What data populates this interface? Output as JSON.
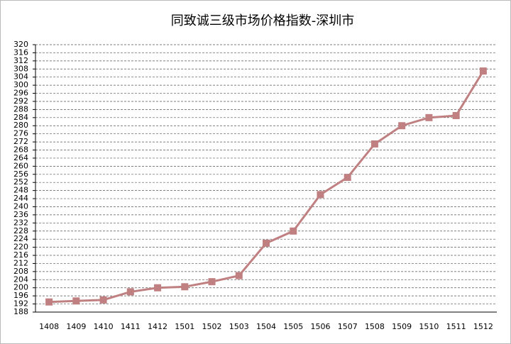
{
  "chart_data": {
    "type": "line",
    "title": "同致诚三级市场价格指数-深圳市",
    "categories": [
      "1408",
      "1409",
      "1410",
      "1411",
      "1412",
      "1501",
      "1502",
      "1503",
      "1504",
      "1505",
      "1506",
      "1507",
      "1508",
      "1509",
      "1510",
      "1511",
      "1512"
    ],
    "values": [
      193,
      193.5,
      194,
      198,
      200,
      200.5,
      203,
      206,
      222,
      228,
      246,
      254.5,
      271,
      280,
      284,
      285,
      307
    ],
    "color": "#c08081",
    "ylim": [
      188,
      320
    ],
    "yticks": [
      188,
      192,
      196,
      200,
      204,
      208,
      212,
      216,
      220,
      224,
      228,
      232,
      236,
      240,
      244,
      248,
      252,
      256,
      260,
      264,
      268,
      272,
      276,
      280,
      284,
      288,
      292,
      296,
      300,
      304,
      308,
      312,
      316,
      320
    ],
    "grid": true
  }
}
